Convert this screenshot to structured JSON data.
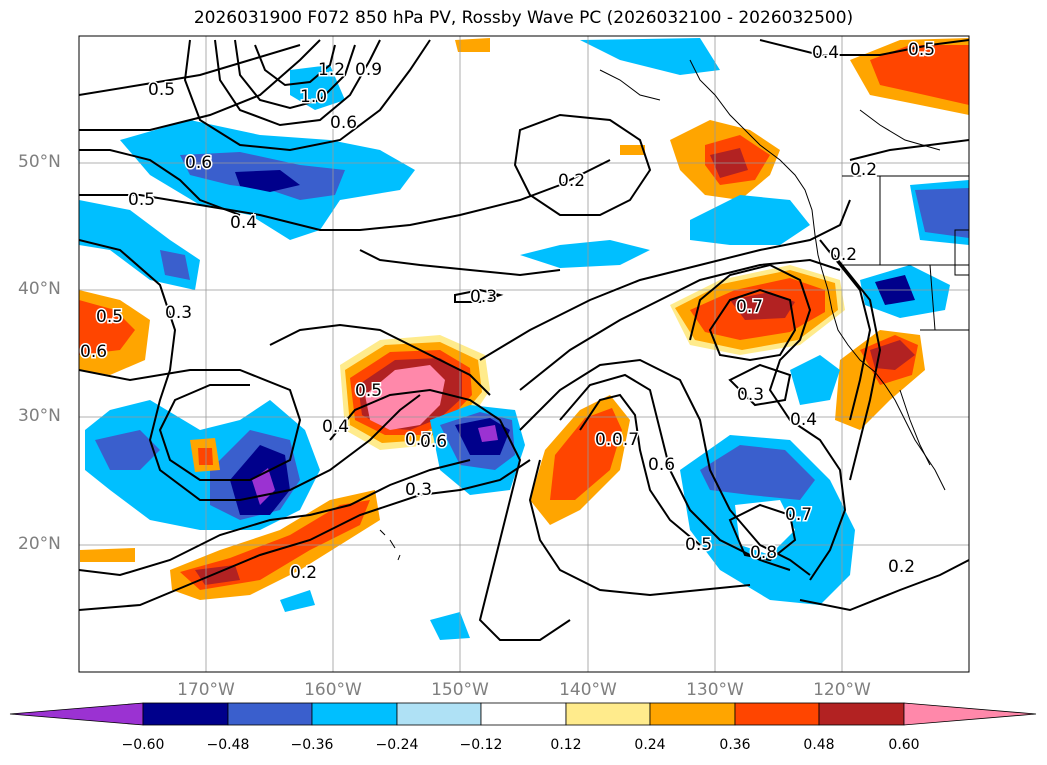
{
  "title": "2026031900 F072 850 hPa PV, Rossby Wave PC (2026032100 - 2026032500)",
  "lat_labels": [
    "50°N",
    "40°N",
    "30°N",
    "20°N"
  ],
  "lon_labels": [
    "170°W",
    "160°W",
    "150°W",
    "140°W",
    "130°W",
    "120°W"
  ],
  "colorbar": {
    "ticks": [
      "−0.60",
      "−0.48",
      "−0.36",
      "−0.24",
      "−0.12",
      "0.12",
      "0.24",
      "0.36",
      "0.48",
      "0.60"
    ],
    "colors": [
      "#9b32d2",
      "#00008b",
      "#3a5fcd",
      "#00bfff",
      "#afe1f5",
      "#ffffff",
      "#ffeb8c",
      "#ffa500",
      "#ff4500",
      "#b22222",
      "#ff88aa"
    ]
  },
  "contour_labels": [
    "1.2",
    "0.9",
    "1.0",
    "0.6",
    "0.5",
    "0.6",
    "0.5",
    "0.4",
    "0.2",
    "0.3",
    "0.3",
    "0.5",
    "0.6",
    "0.5",
    "0.4",
    "0.7",
    "0.6",
    "0.3",
    "0.2",
    "0.6",
    "0.7",
    "0.6",
    "0.7",
    "0.5",
    "0.8",
    "0.7",
    "0.3",
    "0.4",
    "0.2",
    "0.4",
    "0.5",
    "0.2",
    "0.2"
  ]
}
